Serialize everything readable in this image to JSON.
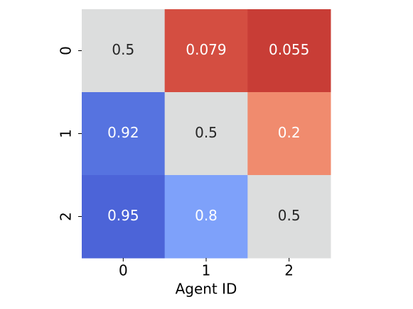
{
  "chart_data": {
    "type": "heatmap",
    "xcategories": [
      "0",
      "1",
      "2"
    ],
    "ycategories": [
      "0",
      "1",
      "2"
    ],
    "values": [
      [
        0.5,
        0.079,
        0.055
      ],
      [
        0.92,
        0.5,
        0.2
      ],
      [
        0.95,
        0.8,
        0.5
      ]
    ],
    "colors": [
      [
        "#dcdddd",
        "#d44e41",
        "#c83d36"
      ],
      [
        "#5673e0",
        "#dcdddd",
        "#f08b6e"
      ],
      [
        "#4c64d8",
        "#7ea1fa",
        "#dcdddd"
      ]
    ],
    "xlabel": "Agent ID"
  }
}
